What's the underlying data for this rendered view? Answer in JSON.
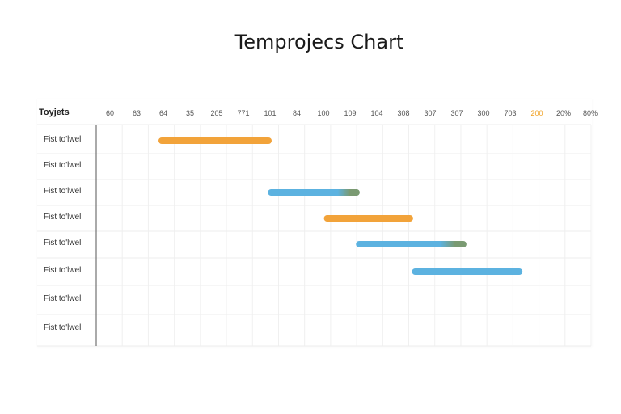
{
  "chart_data": {
    "type": "gantt",
    "title": "Temprojecs Chart",
    "column_header": "Toyjets",
    "ticks": [
      "60",
      "63",
      "64",
      "35",
      "205",
      "771",
      "101",
      "84",
      "100",
      "109",
      "104",
      "308",
      "307",
      "307",
      "300",
      "703",
      "200",
      "20%",
      "80%"
    ],
    "highlight_tick": 16,
    "rows": [
      "Fist to'lwel",
      "Fist to'lwel",
      "Fist to'lwel",
      "Fist to'lwel",
      "Fist to'lwel",
      "Fist to'lwel",
      "Fist to'lwel",
      "Fist to'lwel"
    ],
    "tasks": [
      {
        "row": 0,
        "start": 2.0,
        "end": 6.0,
        "color": "#f2a33a"
      },
      {
        "row": 2,
        "start": 6.1,
        "end": 9.3,
        "color": "#5cb2e0",
        "end_color": "#7a9a72"
      },
      {
        "row": 3,
        "start": 8.2,
        "end": 11.3,
        "color": "#f2a33a"
      },
      {
        "row": 4,
        "start": 9.4,
        "end": 13.3,
        "color": "#5cb2e0",
        "end_color": "#7a9a72"
      },
      {
        "row": 5,
        "start": 11.5,
        "end": 15.4,
        "color": "#5cb2e0"
      }
    ],
    "colors": {
      "accent_orange": "#f2a33a",
      "accent_blue": "#5cb2e0",
      "highlight_tick": "#f0a020"
    },
    "grid": true
  }
}
